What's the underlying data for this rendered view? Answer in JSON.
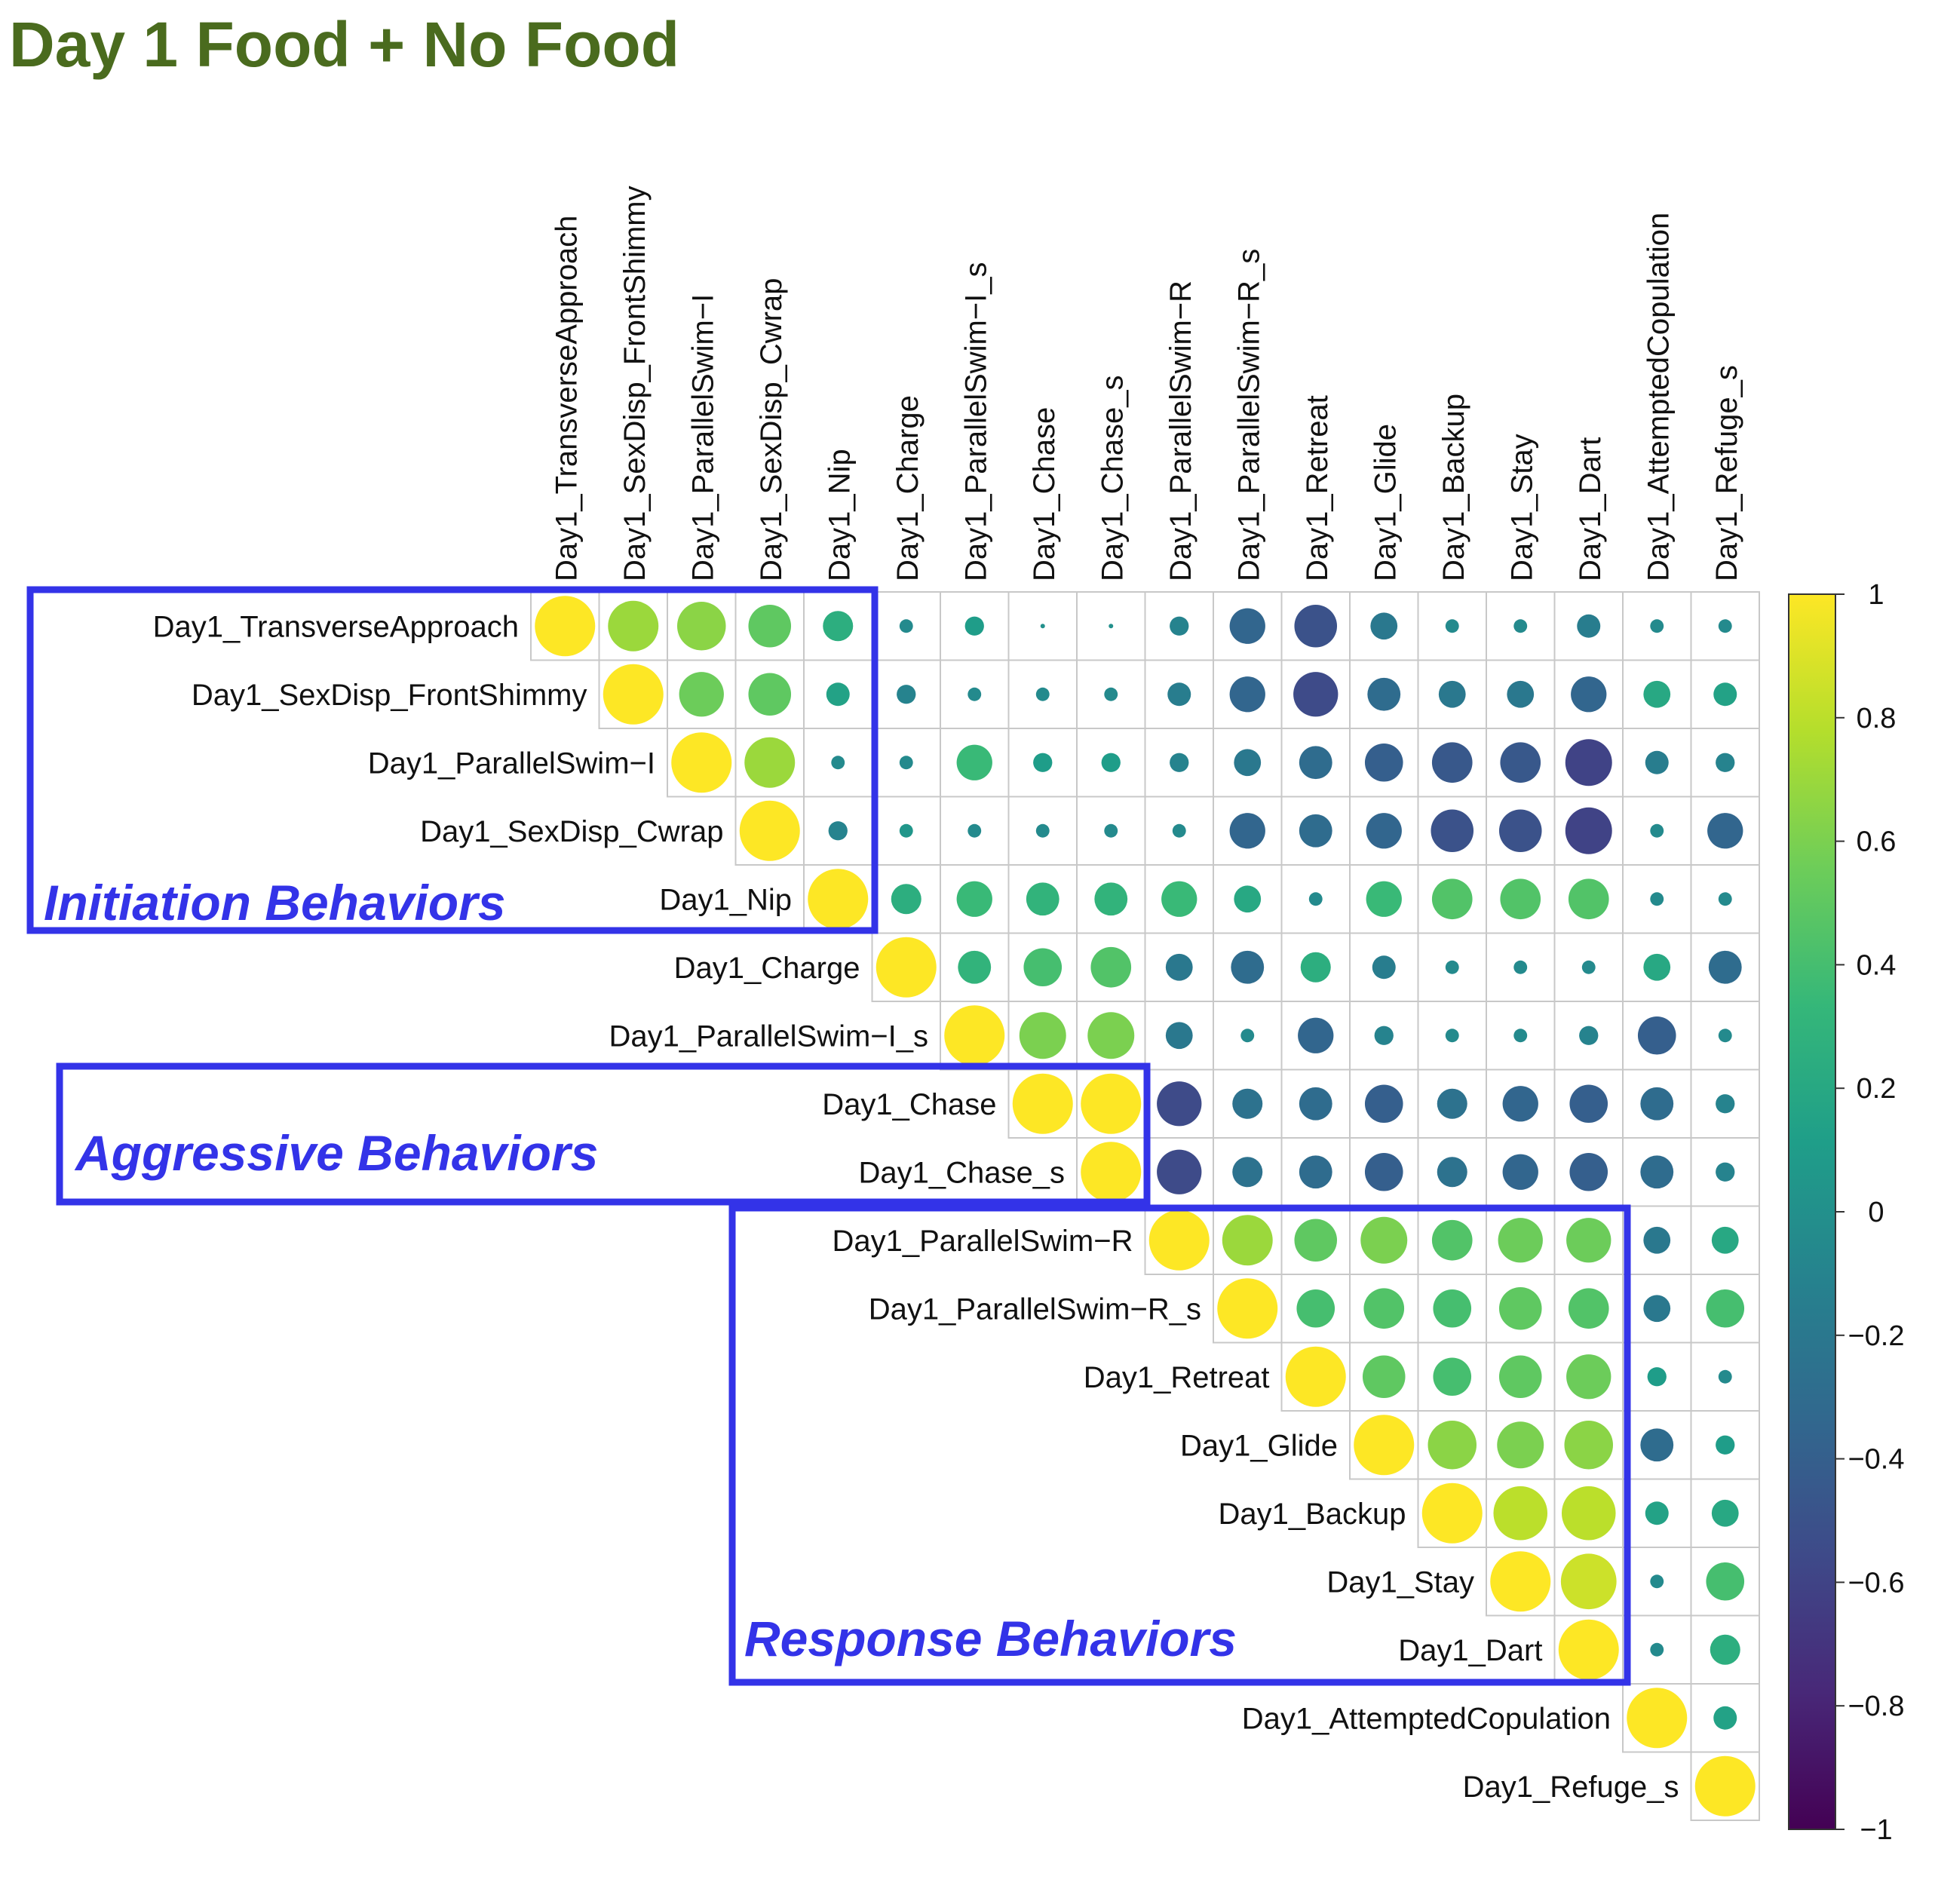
{
  "chart_data": {
    "type": "heatmap",
    "title": "Day 1 Food + No Food",
    "variables": [
      "Day1_TransverseApproach",
      "Day1_SexDisp_FrontShimmy",
      "Day1_ParallelSwim−I",
      "Day1_SexDisp_Cwrap",
      "Day1_Nip",
      "Day1_Charge",
      "Day1_ParallelSwim−I_s",
      "Day1_Chase",
      "Day1_Chase_s",
      "Day1_ParallelSwim−R",
      "Day1_ParallelSwim−R_s",
      "Day1_Retreat",
      "Day1_Glide",
      "Day1_Backup",
      "Day1_Stay",
      "Day1_Dart",
      "Day1_AttemptedCopulation",
      "Day1_Refuge_s"
    ],
    "matrix_upper": [
      [
        1,
        0.7,
        0.65,
        0.5,
        0.25,
        -0.05,
        0.1,
        0,
        0,
        -0.1,
        -0.35,
        -0.5,
        -0.2,
        -0.05,
        -0.05,
        -0.15,
        -0.05,
        -0.05
      ],
      [
        1,
        0.55,
        0.5,
        0.15,
        -0.1,
        -0.05,
        -0.05,
        -0.05,
        -0.15,
        -0.35,
        -0.55,
        -0.3,
        -0.2,
        -0.2,
        -0.35,
        0.2,
        0.15
      ],
      [
        1,
        0.7,
        -0.05,
        -0.05,
        0.35,
        0.1,
        0.1,
        -0.1,
        -0.2,
        -0.3,
        -0.4,
        -0.45,
        -0.45,
        -0.6,
        -0.15,
        -0.1
      ],
      [
        1,
        -0.1,
        0.05,
        -0.05,
        -0.05,
        -0.05,
        -0.05,
        -0.35,
        -0.3,
        -0.35,
        -0.5,
        -0.5,
        -0.6,
        -0.05,
        -0.35
      ],
      [
        1,
        0.25,
        0.35,
        0.3,
        0.3,
        0.35,
        0.2,
        -0.05,
        0.35,
        0.45,
        0.45,
        0.45,
        -0.05,
        -0.05
      ],
      [
        1,
        0.3,
        0.4,
        0.45,
        -0.2,
        -0.3,
        0.25,
        -0.15,
        -0.05,
        -0.05,
        -0.05,
        0.2,
        -0.3
      ],
      [
        1,
        0.6,
        0.6,
        -0.2,
        -0.05,
        -0.35,
        -0.1,
        -0.05,
        -0.05,
        -0.1,
        -0.4,
        -0.05
      ],
      [
        1,
        1,
        -0.55,
        -0.25,
        -0.3,
        -0.4,
        -0.25,
        -0.35,
        -0.4,
        -0.3,
        -0.1
      ],
      [
        1,
        -0.55,
        -0.25,
        -0.3,
        -0.4,
        -0.25,
        -0.35,
        -0.4,
        -0.3,
        -0.1
      ],
      [
        1,
        0.7,
        0.5,
        0.6,
        0.45,
        0.55,
        0.55,
        -0.2,
        0.2
      ],
      [
        1,
        0.4,
        0.45,
        0.4,
        0.5,
        0.45,
        -0.2,
        0.4
      ],
      [
        1,
        0.5,
        0.4,
        0.5,
        0.55,
        0.1,
        -0.05
      ],
      [
        1,
        0.65,
        0.6,
        0.65,
        -0.3,
        0.1
      ],
      [
        1,
        0.8,
        0.8,
        0.15,
        0.2
      ],
      [
        1,
        0.85,
        -0.05,
        0.4
      ],
      [
        1,
        -0.05,
        0.25
      ],
      [
        1,
        0.15
      ],
      [
        1
      ]
    ],
    "colorbar": {
      "ticks": [
        "1",
        "0.8",
        "0.6",
        "0.4",
        "0.2",
        "0",
        "−0.2",
        "−0.4",
        "−0.6",
        "−0.8",
        "−1"
      ],
      "range": [
        -1,
        1
      ],
      "colormap": [
        "#440154",
        "#482878",
        "#3e4a89",
        "#31688e",
        "#26828e",
        "#1f9e89",
        "#35b779",
        "#6dcd59",
        "#b4de2c",
        "#fde725"
      ]
    },
    "groups": [
      {
        "label": "Initiation Behaviors",
        "rows": [
          0,
          4
        ],
        "cols": [
          0,
          4
        ]
      },
      {
        "label": "Aggressive Behaviors",
        "rows": [
          7,
          8
        ],
        "cols": [
          7,
          8
        ]
      },
      {
        "label": "Response Behaviors",
        "rows": [
          9,
          15
        ],
        "cols": [
          9,
          15
        ]
      }
    ],
    "group_color": "#3333e8",
    "title_color": "#4a6b1e",
    "layout": "upper-triangle"
  }
}
